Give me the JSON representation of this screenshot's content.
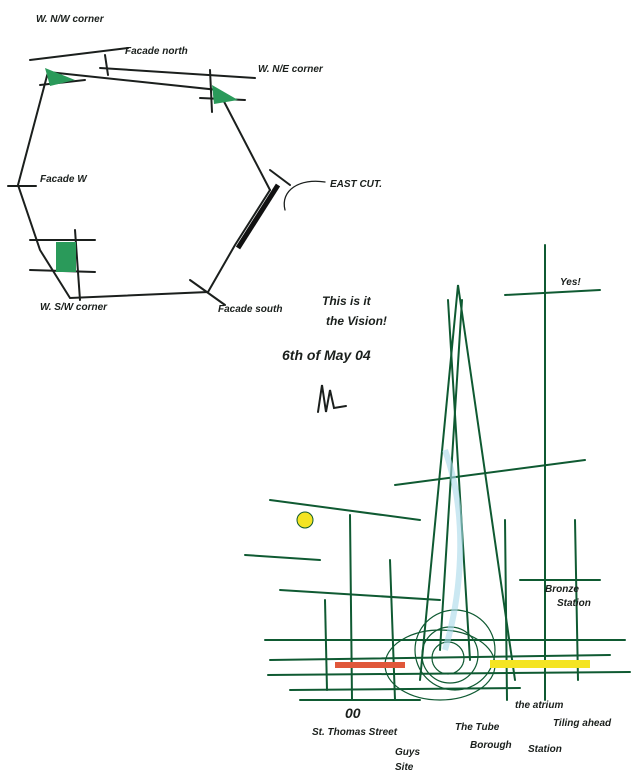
{
  "plan_sketch": {
    "labels": [
      "W. N/W corner",
      "Facade north",
      "W. N/E corner",
      "Facade W",
      "EAST CUT.",
      "W. S/W corner",
      "Facade south"
    ]
  },
  "note": {
    "lines": [
      "This is it",
      "the Vision!",
      "6th of May 04"
    ]
  },
  "elevation_sketch": {
    "labels": [
      "Yes!",
      "Bronze",
      "Station",
      "00",
      "St. Thomas Street",
      "Guys",
      "Site",
      "The Tube",
      "Borough",
      "Station",
      "the atrium",
      "Tiling ahead"
    ]
  }
}
